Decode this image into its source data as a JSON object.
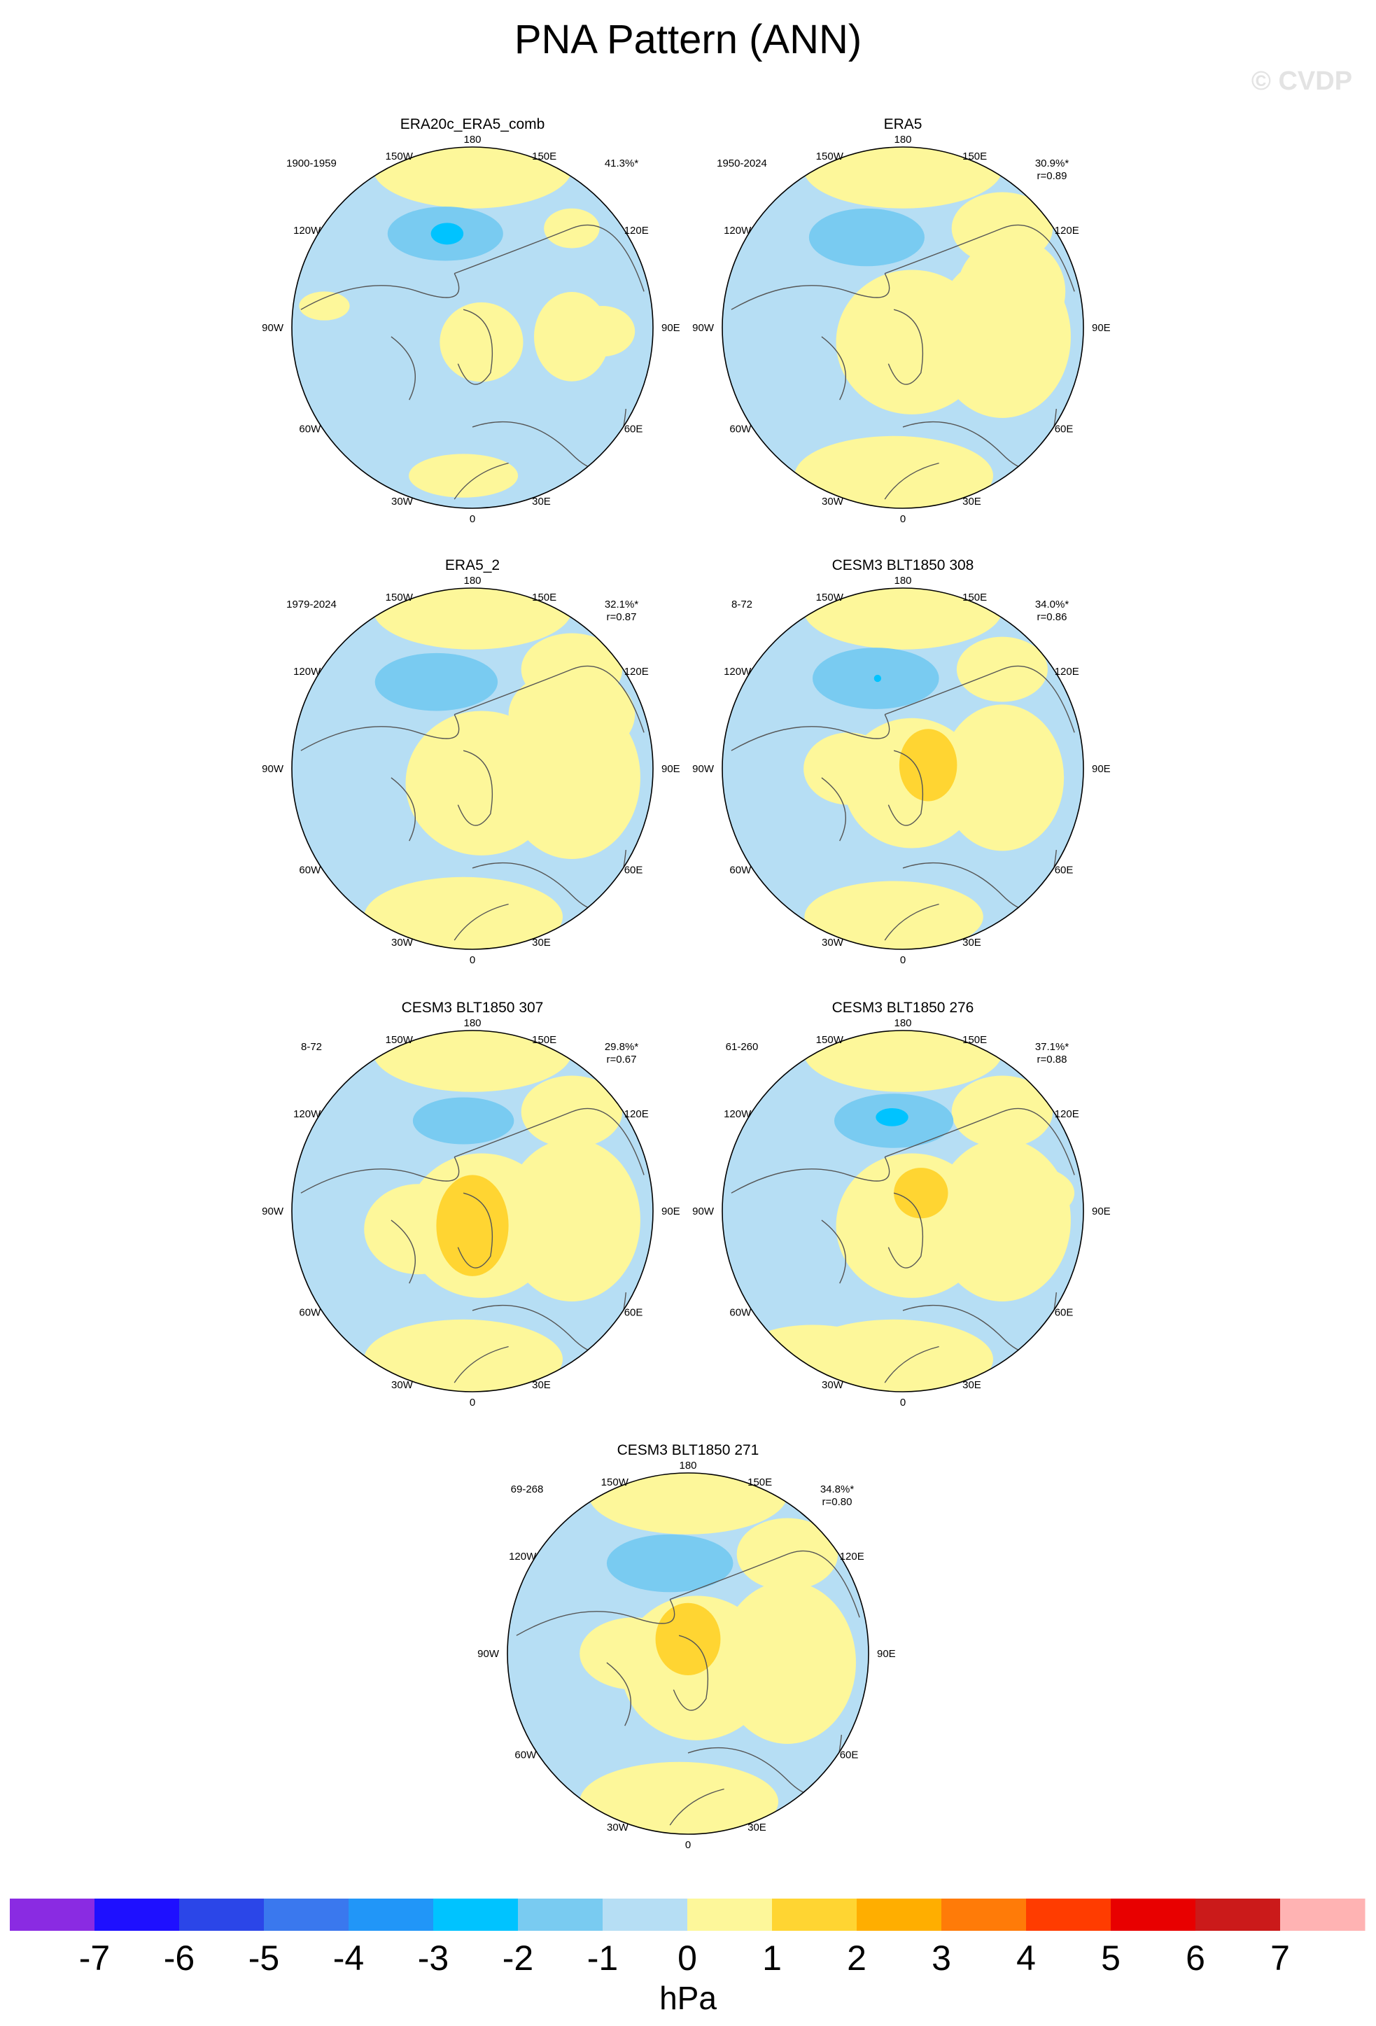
{
  "page": {
    "title": "PNA Pattern (ANN)",
    "watermark": "© CVDP"
  },
  "chart_data": {
    "type": "map",
    "projection": "north polar stereographic",
    "colorbar": {
      "unit": "hPa",
      "ticks": [
        "-7",
        "-6",
        "-5",
        "-4",
        "-3",
        "-2",
        "-1",
        "0",
        "1",
        "2",
        "3",
        "4",
        "5",
        "6",
        "7"
      ],
      "colors": [
        "#8a2be2",
        "#1e10ff",
        "#2b46e8",
        "#3a78ee",
        "#2196f8",
        "#00c3ff",
        "#79cbf1",
        "#b6def4",
        "#fdf79a",
        "#ffd532",
        "#ffae00",
        "#ff7b08",
        "#ff3c00",
        "#e80000",
        "#cb1a1a",
        "#ffb3b3"
      ]
    },
    "longitude_labels": {
      "top": "180",
      "bottom": "0",
      "left": "90W",
      "right": "90E",
      "ul1": "150W",
      "ul2": "120W",
      "ll1": "60W",
      "ll2": "30W",
      "ur1": "150E",
      "ur2": "120E",
      "lr1": "60E",
      "lr2": "30E"
    },
    "panels": [
      {
        "title": "ERA20c_ERA5_comb",
        "years": "1900-1959",
        "pct": "41.3%*",
        "r": ""
      },
      {
        "title": "ERA5",
        "years": "1950-2024",
        "pct": "30.9%*",
        "r": "r=0.89"
      },
      {
        "title": "ERA5_2",
        "years": "1979-2024",
        "pct": "32.1%*",
        "r": "r=0.87"
      },
      {
        "title": "CESM3 BLT1850 308",
        "years": "8-72",
        "pct": "34.0%*",
        "r": "r=0.86"
      },
      {
        "title": "CESM3 BLT1850 307",
        "years": "8-72",
        "pct": "29.8%*",
        "r": "r=0.67"
      },
      {
        "title": "CESM3 BLT1850 276",
        "years": "61-260",
        "pct": "37.1%*",
        "r": "r=0.88"
      },
      {
        "title": "CESM3 BLT1850 271",
        "years": "69-268",
        "pct": "34.8%*",
        "r": "r=0.80"
      }
    ]
  }
}
